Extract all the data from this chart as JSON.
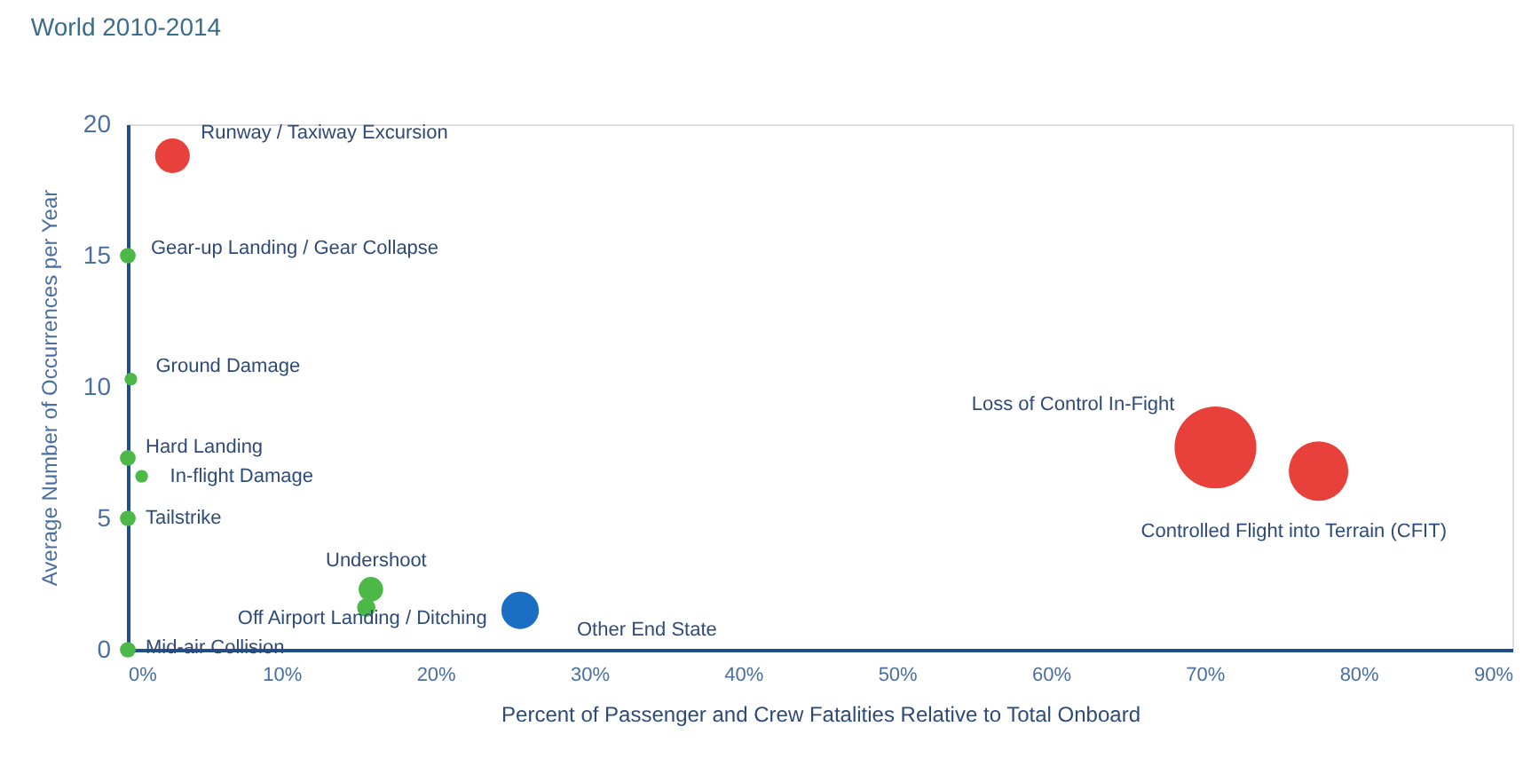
{
  "chart_data": {
    "type": "bubble",
    "title": "World 2010-2014",
    "xlabel": "Percent of Passenger and Crew Fatalities Relative to Total Onboard",
    "ylabel": "Average Number of Occurrences per Year",
    "x": [
      2.9,
      0,
      0.2,
      0,
      0.9,
      0,
      15.8,
      15.5,
      25.5,
      0,
      70.7,
      77.4
    ],
    "values": [
      18.8,
      15,
      10.3,
      7.3,
      6.6,
      5,
      2.3,
      1.6,
      1.5,
      0,
      7.7,
      6.8
    ],
    "sizes": [
      0.18,
      0.037,
      0.024,
      0.037,
      0.024,
      0.037,
      0.09,
      0.05,
      0.21,
      0.037,
      1,
      0.53
    ],
    "colors": [
      "#e8403a",
      "#4cb848",
      "#4cb848",
      "#4cb848",
      "#4cb848",
      "#4cb848",
      "#4cb848",
      "#4cb848",
      "#1a6fc4",
      "#4cb848",
      "#e8403a",
      "#e8403a"
    ],
    "annotations": [
      {
        "text": "Runway / Taxiway Excursion",
        "x": 2.9,
        "y": 18.8
      },
      {
        "text": "Gear-up Landing / Gear Collapse",
        "x": 0,
        "y": 15
      },
      {
        "text": "Ground Damage",
        "x": 0.2,
        "y": 10.3
      },
      {
        "text": "Hard Landing",
        "x": 0,
        "y": 7.3
      },
      {
        "text": "In-flight Damage",
        "x": 0.9,
        "y": 6.6
      },
      {
        "text": "Tailstrike",
        "x": 0,
        "y": 5
      },
      {
        "text": "Undershoot",
        "x": 15.8,
        "y": 2.3
      },
      {
        "text": "Off Airport Landing / Ditching",
        "x": 15.5,
        "y": 1.6
      },
      {
        "text": "Other End State",
        "x": 25.5,
        "y": 1.5
      },
      {
        "text": "Mid-air Collision",
        "x": 0,
        "y": 0
      },
      {
        "text": "Loss of Control In-Fight",
        "x": 70.7,
        "y": 7.7
      },
      {
        "text": "Controlled Flight into Terrain (CFIT)",
        "x": 77.4,
        "y": 6.8
      }
    ],
    "xlim": [
      0,
      90
    ],
    "xticks": [
      {
        "value": 0,
        "label": "0%"
      },
      {
        "value": 10,
        "label": "10%"
      },
      {
        "value": 20,
        "label": "20%"
      },
      {
        "value": 30,
        "label": "30%"
      },
      {
        "value": 40,
        "label": "40%"
      },
      {
        "value": 50,
        "label": "50%"
      },
      {
        "value": 60,
        "label": "60%"
      },
      {
        "value": 70,
        "label": "70%"
      },
      {
        "value": 80,
        "label": "80%"
      },
      {
        "value": 90,
        "label": "90%"
      }
    ],
    "ylim": [
      0,
      20
    ],
    "yticks": [
      0,
      5,
      10,
      15,
      20
    ],
    "grid": false
  }
}
